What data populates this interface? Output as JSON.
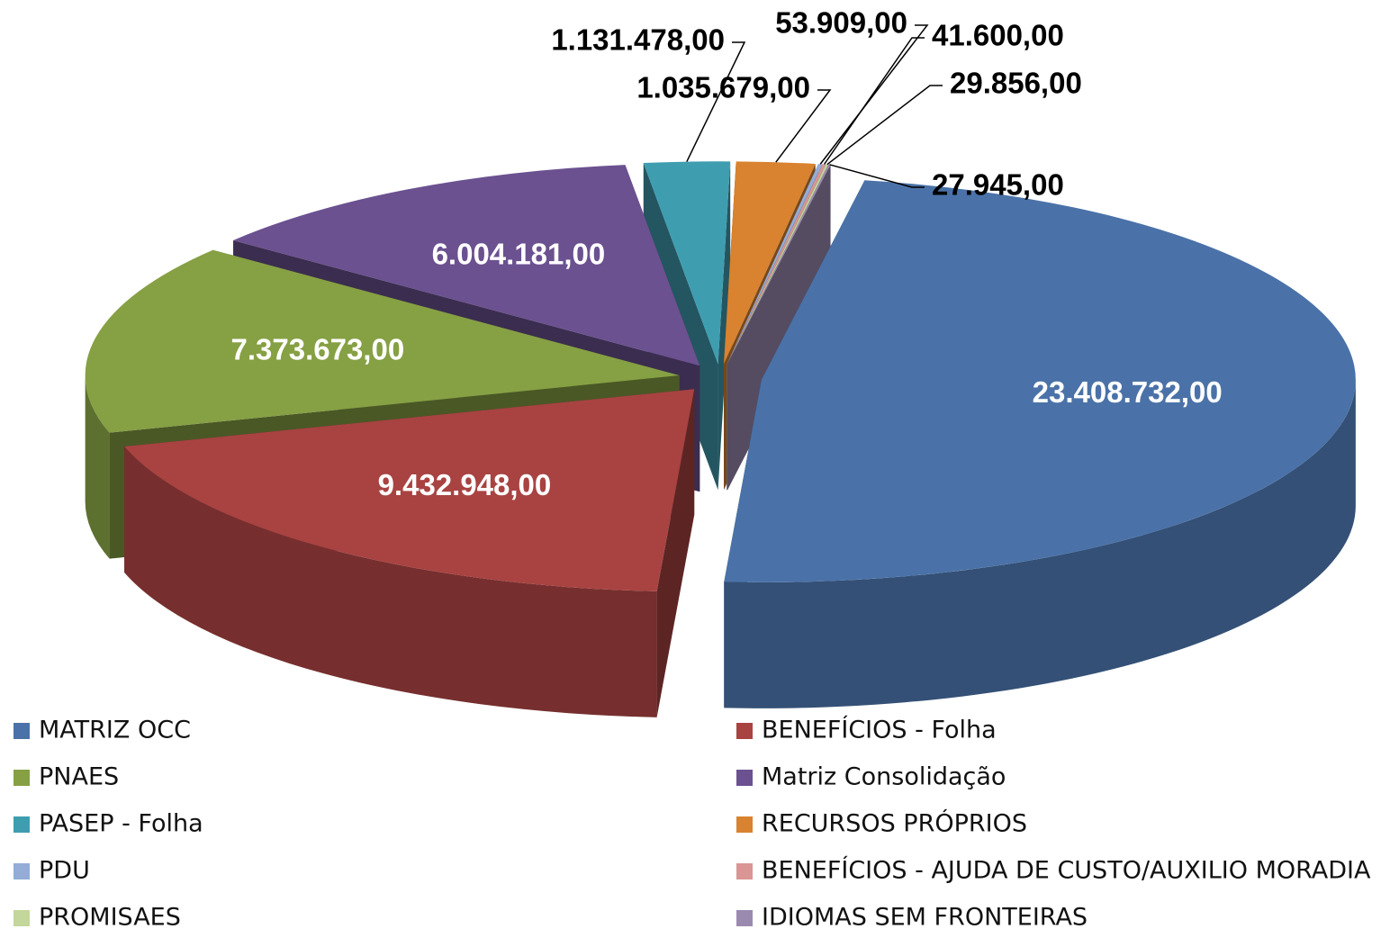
{
  "chart_data": {
    "type": "pie3d",
    "categories": [
      "MATRIZ OCC",
      "BENEFÍCIOS - Folha",
      "PNAES",
      "Matriz Consolidação",
      "PASEP - Folha",
      "RECURSOS PRÓPRIOS",
      "PDU",
      "BENEFÍCIOS - AJUDA DE CUSTO/AUXILIO MORADIA",
      "PROMISAES",
      "IDIOMAS SEM FRONTEIRAS"
    ],
    "values": [
      23408732,
      9432948,
      7373673,
      6004181,
      1131478,
      1035679,
      53909,
      41600,
      29856,
      27945
    ],
    "value_labels": [
      "23.408.732,00",
      "9.432.948,00",
      "7.373.673,00",
      "6.004.181,00",
      "1.131.478,00",
      "1.035.679,00",
      "53.909,00",
      "41.600,00",
      "29.856,00",
      "27.945,00"
    ],
    "colors": [
      "#4a72a8",
      "#a84342",
      "#86a044",
      "#6b5190",
      "#3f9db0",
      "#d9822f",
      "#94acd6",
      "#d99694",
      "#c3d69b",
      "#9a8ab0"
    ],
    "legend": "bottom"
  }
}
